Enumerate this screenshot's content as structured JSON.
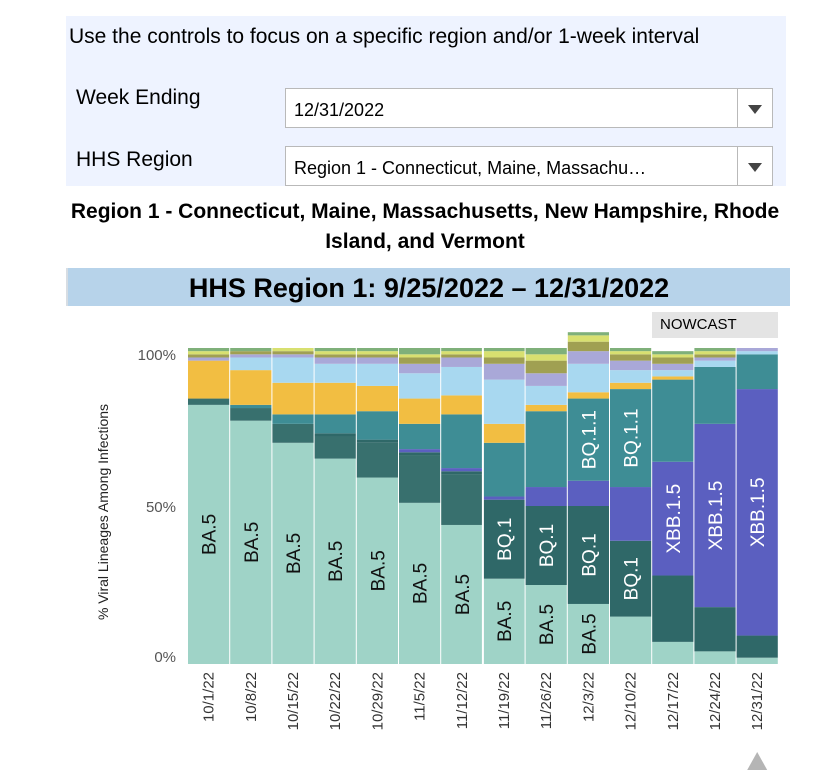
{
  "controls": {
    "intro": "Use the controls to focus on a specific region and/or 1-week interval",
    "week_label": "Week Ending",
    "week_value": "12/31/2022",
    "region_label": "HHS Region",
    "region_value": "Region 1 - Connecticut, Maine, Massachu…"
  },
  "region_title": "Region 1 - Connecticut, Maine, Massachusetts, New Hampshire, Rhode Island, and Vermont",
  "banner": "HHS Region 1: 9/25/2022 – 12/31/2022",
  "nowcast_label": "NOWCAST",
  "colors": {
    "BA.5": "#9fd3c7",
    "BA.5 sublineage": "#38706e",
    "BQ.1": "#2f6868",
    "BQ.1.1": "#3e8d95",
    "XBB.1.5": "#5b5fc0",
    "Other": "#f2be42",
    "Other 2": "#a8d8f0",
    "Other 3": "#a0a052",
    "Other 4": "#a9a8d8",
    "Other 5": "#d8e070",
    "Other 6": "#7fb07a"
  },
  "chart_data": {
    "type": "bar",
    "stacked": true,
    "ylabel": "% Viral Lineages Among Infections",
    "yticks": [
      "0%",
      "50%",
      "100%"
    ],
    "ylim": [
      0,
      100
    ],
    "categories": [
      "10/1/22",
      "10/8/22",
      "10/15/22",
      "10/22/22",
      "10/29/22",
      "11/5/22",
      "11/12/22",
      "11/19/22",
      "11/26/22",
      "12/3/22",
      "12/10/22",
      "12/17/22",
      "12/24/22",
      "12/31/22"
    ],
    "nowcast_from": "12/17/22",
    "series": [
      {
        "name": "BA.5",
        "color": "#9fd3c7",
        "values": [
          82,
          77,
          70,
          65,
          59,
          51,
          44,
          27,
          25,
          19,
          15,
          7,
          4,
          2
        ]
      },
      {
        "name": "",
        "color": "#38706e",
        "values": [
          2,
          4,
          6,
          7,
          11,
          15,
          16,
          0,
          0,
          0,
          0,
          0,
          0,
          0
        ]
      },
      {
        "name": "BQ.1",
        "color": "#2f6868",
        "values": [
          0,
          0,
          0,
          1,
          1,
          1,
          1,
          25,
          25,
          31,
          24,
          21,
          14,
          7
        ]
      },
      {
        "name": "XBB.1.5",
        "color": "#5b5fc0",
        "values": [
          0,
          0,
          0,
          0,
          0,
          1,
          1,
          1,
          6,
          8,
          17,
          36,
          58,
          78
        ]
      },
      {
        "name": "BQ.1.1",
        "color": "#3e8d95",
        "values": [
          0,
          1,
          3,
          6,
          9,
          8,
          17,
          17,
          24,
          26,
          31,
          26,
          18,
          11
        ]
      },
      {
        "name": "",
        "color": "#f2be42",
        "values": [
          12,
          11,
          10,
          10,
          8,
          8,
          6,
          6,
          2,
          2,
          2,
          1,
          0,
          0
        ]
      },
      {
        "name": "",
        "color": "#a8d8f0",
        "values": [
          0,
          4,
          8,
          6,
          7,
          8,
          9,
          14,
          6,
          9,
          4,
          2,
          2,
          1
        ]
      },
      {
        "name": "",
        "color": "#a9a8d8",
        "values": [
          1,
          1,
          1,
          2,
          2,
          3,
          3,
          5,
          4,
          4,
          3,
          2,
          1,
          1
        ]
      },
      {
        "name": "",
        "color": "#a0a052",
        "values": [
          1,
          1,
          1,
          1,
          1,
          2,
          1,
          2,
          4,
          3,
          2,
          2,
          1,
          0
        ]
      },
      {
        "name": "",
        "color": "#d8e070",
        "values": [
          1,
          0,
          1,
          1,
          1,
          1,
          1,
          2,
          2,
          2,
          1,
          1,
          1,
          0
        ]
      },
      {
        "name": "",
        "color": "#7fb07a",
        "values": [
          1,
          1,
          0,
          1,
          1,
          2,
          1,
          1,
          2,
          1,
          1,
          1,
          1,
          0
        ]
      }
    ],
    "bar_labels": [
      {
        "category": "10/1/22",
        "series": "BA.5",
        "text": "BA.5"
      },
      {
        "category": "10/8/22",
        "series": "BA.5",
        "text": "BA.5"
      },
      {
        "category": "10/15/22",
        "series": "BA.5",
        "text": "BA.5"
      },
      {
        "category": "10/22/22",
        "series": "BA.5",
        "text": "BA.5"
      },
      {
        "category": "10/29/22",
        "series": "BA.5",
        "text": "BA.5"
      },
      {
        "category": "11/5/22",
        "series": "BA.5",
        "text": "BA.5"
      },
      {
        "category": "11/12/22",
        "series": "BA.5",
        "text": "BA.5"
      },
      {
        "category": "11/19/22",
        "series": "BA.5",
        "text": "BA.5"
      },
      {
        "category": "11/19/22",
        "series": "BQ.1",
        "text": "BQ.1"
      },
      {
        "category": "11/26/22",
        "series": "BA.5",
        "text": "BA.5"
      },
      {
        "category": "11/26/22",
        "series": "BQ.1",
        "text": "BQ.1"
      },
      {
        "category": "12/3/22",
        "series": "BA.5",
        "text": "BA.5"
      },
      {
        "category": "12/3/22",
        "series": "BQ.1",
        "text": "BQ.1"
      },
      {
        "category": "12/3/22",
        "series": "BQ.1.1",
        "text": "BQ.1.1"
      },
      {
        "category": "12/10/22",
        "series": "BQ.1",
        "text": "BQ.1"
      },
      {
        "category": "12/10/22",
        "series": "BQ.1.1",
        "text": "BQ.1.1"
      },
      {
        "category": "12/17/22",
        "series": "XBB.1.5",
        "text": "XBB.1.5"
      },
      {
        "category": "12/24/22",
        "series": "XBB.1.5",
        "text": "XBB.1.5"
      },
      {
        "category": "12/31/22",
        "series": "XBB.1.5",
        "text": "XBB.1.5"
      }
    ]
  }
}
